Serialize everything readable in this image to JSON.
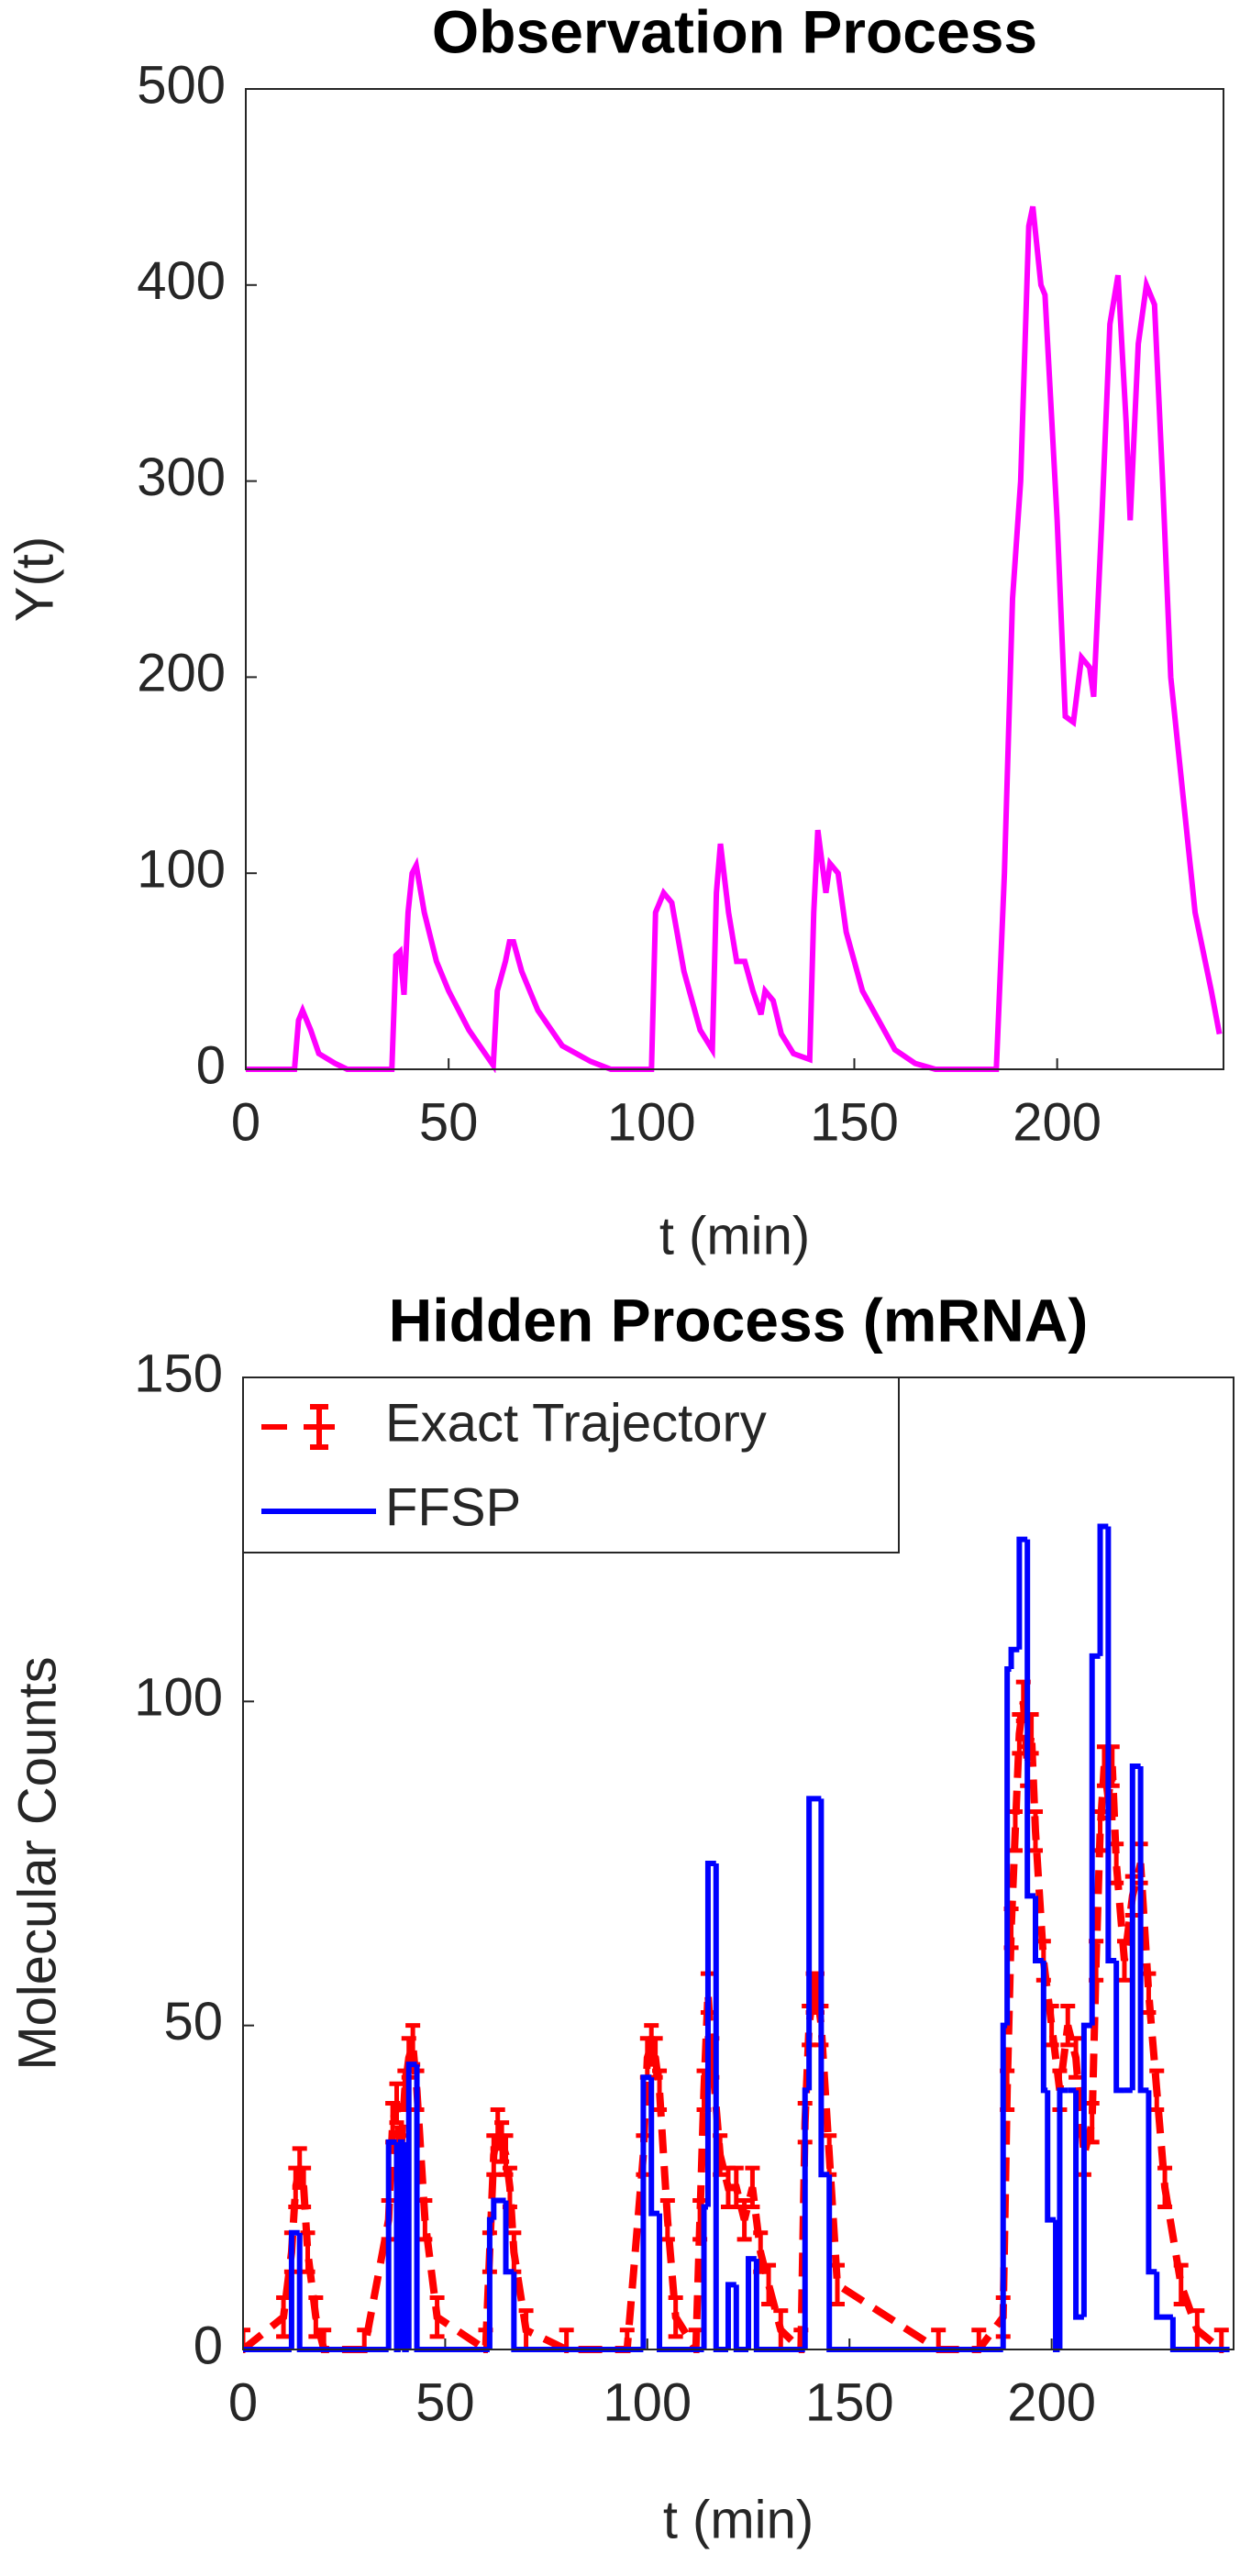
{
  "chart_data": [
    {
      "type": "line",
      "title": "Observation Process",
      "xlabel": "t (min)",
      "ylabel": "Y(t)",
      "xlim": [
        0,
        241
      ],
      "ylim": [
        0,
        500
      ],
      "xticks": [
        0,
        50,
        100,
        150,
        200
      ],
      "yticks": [
        0,
        100,
        200,
        300,
        400,
        500
      ],
      "series": [
        {
          "style": "line",
          "color": "#ff00ff",
          "x": [
            0,
            12,
            13,
            14,
            16,
            18,
            22,
            25,
            36,
            37,
            38,
            39,
            40,
            41,
            42,
            44,
            47,
            50,
            55,
            60,
            61,
            62,
            64,
            65,
            66,
            68,
            72,
            78,
            85,
            90,
            100,
            101,
            103,
            105,
            108,
            112,
            115,
            116,
            117,
            119,
            121,
            123,
            125,
            127,
            128,
            130,
            132,
            135,
            139,
            140,
            141,
            143,
            144,
            146,
            148,
            152,
            156,
            160,
            165,
            170,
            185,
            187,
            189,
            191,
            193,
            194,
            196,
            197,
            200,
            202,
            204,
            206,
            208,
            209,
            211,
            213,
            215,
            217,
            218,
            220,
            221,
            222,
            224,
            226,
            228,
            232,
            234,
            238,
            240
          ],
          "values": [
            0,
            0,
            25,
            30,
            20,
            8,
            3,
            0,
            0,
            58,
            60,
            38,
            80,
            100,
            104,
            80,
            55,
            40,
            20,
            5,
            2,
            40,
            55,
            65,
            65,
            50,
            30,
            12,
            4,
            0,
            0,
            80,
            90,
            85,
            50,
            20,
            10,
            90,
            115,
            80,
            55,
            55,
            40,
            28,
            40,
            35,
            18,
            8,
            5,
            80,
            122,
            90,
            105,
            100,
            70,
            40,
            25,
            10,
            3,
            0,
            0,
            100,
            240,
            300,
            430,
            440,
            400,
            395,
            280,
            180,
            177,
            210,
            205,
            190,
            280,
            380,
            405,
            330,
            280,
            370,
            385,
            400,
            390,
            300,
            200,
            120,
            80,
            40,
            18
          ]
        }
      ]
    },
    {
      "type": "line",
      "title": "Hidden Process (mRNA)",
      "xlabel": "t (min)",
      "ylabel": "Molecular Counts",
      "xlim": [
        0,
        245
      ],
      "ylim": [
        0,
        150
      ],
      "xticks": [
        0,
        50,
        100,
        150,
        200
      ],
      "yticks": [
        0,
        50,
        100,
        150
      ],
      "legend": "northwest",
      "series": [
        {
          "name": "Exact Trajectory",
          "style": "errorbar",
          "linestyle": "dashed",
          "color": "#ff0000",
          "error": 3,
          "x": [
            0,
            10,
            12,
            13,
            14,
            15,
            16,
            18,
            20,
            30,
            36,
            37,
            38,
            39,
            40,
            41,
            42,
            43,
            45,
            48,
            60,
            61,
            62,
            63,
            64,
            65,
            66,
            67,
            70,
            80,
            95,
            99,
            100,
            101,
            102,
            103,
            105,
            107,
            112,
            113,
            114,
            115,
            116,
            118,
            120,
            122,
            124,
            126,
            128,
            130,
            133,
            138,
            139,
            140,
            141,
            142,
            143,
            145,
            147,
            172,
            182,
            188,
            189,
            190,
            191,
            192,
            193,
            194,
            195,
            196,
            198,
            200,
            202,
            204,
            206,
            208,
            210,
            211,
            212,
            213,
            214,
            215,
            216,
            218,
            220,
            222,
            224,
            226,
            228,
            232,
            236,
            242
          ],
          "values": [
            0,
            5,
            15,
            25,
            28,
            25,
            15,
            5,
            0,
            0,
            20,
            35,
            38,
            30,
            40,
            45,
            47,
            40,
            20,
            5,
            0,
            15,
            30,
            34,
            32,
            30,
            25,
            15,
            3,
            0,
            0,
            30,
            45,
            47,
            45,
            40,
            20,
            5,
            0,
            20,
            40,
            55,
            45,
            30,
            25,
            25,
            20,
            25,
            15,
            10,
            3,
            0,
            35,
            50,
            55,
            55,
            50,
            30,
            10,
            0,
            0,
            5,
            40,
            65,
            80,
            95,
            100,
            90,
            95,
            80,
            60,
            50,
            40,
            50,
            45,
            30,
            35,
            60,
            80,
            90,
            85,
            90,
            75,
            60,
            70,
            75,
            55,
            40,
            25,
            10,
            3,
            0
          ]
        },
        {
          "name": "FFSP",
          "style": "stairs",
          "color": "#0000ff",
          "x": [
            0,
            12,
            14,
            36,
            38,
            39,
            40,
            41,
            43,
            61,
            62,
            65,
            67,
            99,
            101,
            103,
            114,
            115,
            117,
            120,
            122,
            125,
            127,
            139,
            140,
            143,
            145,
            188,
            189,
            190,
            192,
            194,
            196,
            198,
            199,
            201,
            202,
            204,
            206,
            208,
            210,
            212,
            214,
            216,
            218,
            220,
            222,
            224,
            226,
            230,
            244
          ],
          "values": [
            0,
            18,
            0,
            32,
            0,
            32,
            0,
            44,
            0,
            20,
            23,
            12,
            0,
            42,
            21,
            0,
            22,
            75,
            0,
            10,
            0,
            14,
            0,
            40,
            85,
            27,
            0,
            50,
            105,
            108,
            125,
            70,
            60,
            40,
            20,
            0,
            40,
            40,
            5,
            50,
            107,
            127,
            60,
            40,
            40,
            90,
            40,
            12,
            5,
            0,
            0
          ]
        }
      ]
    }
  ]
}
